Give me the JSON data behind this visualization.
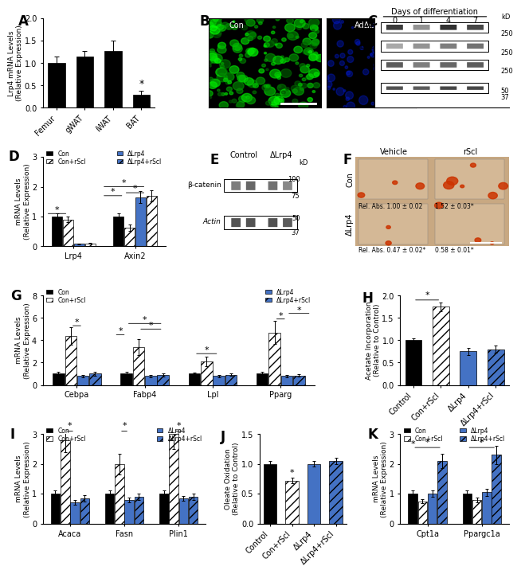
{
  "panel_A": {
    "categories": [
      "Femur",
      "gWAT",
      "iWAT",
      "BAT"
    ],
    "values": [
      1.0,
      1.15,
      1.28,
      0.3
    ],
    "errors": [
      0.15,
      0.12,
      0.22,
      0.08
    ],
    "ylabel": "Lrp4 mRNA Levels\n(Relative Expression)",
    "ylim": [
      0.0,
      2.0
    ],
    "yticks": [
      0.0,
      0.5,
      1.0,
      1.5,
      2.0
    ],
    "bar_color": "#000000",
    "star_pos": [
      3
    ],
    "label": "A"
  },
  "panel_D": {
    "groups": [
      "Lrp4",
      "Axin2"
    ],
    "conditions": [
      "Con",
      "Con+rScl",
      "ΔLrp4",
      "ΔLrp4+rScl"
    ],
    "values": {
      "Lrp4": [
        1.0,
        0.9,
        0.08,
        0.1
      ],
      "Axin2": [
        1.0,
        0.62,
        1.65,
        1.7
      ]
    },
    "errors": {
      "Lrp4": [
        0.1,
        0.1,
        0.02,
        0.02
      ],
      "Axin2": [
        0.12,
        0.1,
        0.2,
        0.18
      ]
    },
    "ylabel": "mRNA Levels\n(Relative Expression)",
    "ylim": [
      0,
      3
    ],
    "yticks": [
      0,
      1,
      2,
      3
    ],
    "colors": [
      "#000000",
      "#555555",
      "#4472C4",
      "#4472C4"
    ],
    "hatches": [
      "",
      "///",
      "",
      "///"
    ],
    "label": "D"
  },
  "panel_G": {
    "groups": [
      "Cebpa",
      "Fabp4",
      "Lpl",
      "Pparg"
    ],
    "conditions": [
      "Con",
      "Con+rScl",
      "ΔLrp4",
      "ΔLrp4+rScl"
    ],
    "values": {
      "Cebpa": [
        1.0,
        4.4,
        0.8,
        1.0
      ],
      "Fabp4": [
        1.0,
        3.4,
        0.8,
        0.9
      ],
      "Lpl": [
        1.0,
        2.1,
        0.8,
        0.9
      ],
      "Pparg": [
        1.0,
        4.7,
        0.8,
        0.85
      ]
    },
    "errors": {
      "Cebpa": [
        0.15,
        0.8,
        0.1,
        0.15
      ],
      "Fabp4": [
        0.15,
        0.7,
        0.1,
        0.12
      ],
      "Lpl": [
        0.12,
        0.45,
        0.1,
        0.1
      ],
      "Pparg": [
        0.15,
        1.0,
        0.1,
        0.1
      ]
    },
    "ylabel": "mRNA Levels\n(Relative Expression)",
    "ylim": [
      0,
      8
    ],
    "yticks": [
      0,
      2,
      4,
      6,
      8
    ],
    "colors": [
      "#000000",
      "#555555",
      "#4472C4",
      "#4472C4"
    ],
    "hatches": [
      "",
      "///",
      "",
      "///"
    ],
    "label": "G"
  },
  "panel_H": {
    "categories": [
      "Control",
      "Con+rScl",
      "ΔLrp4",
      "ΔLrp4+rScl"
    ],
    "values": [
      1.0,
      1.75,
      0.75,
      0.8
    ],
    "errors": [
      0.05,
      0.1,
      0.08,
      0.08
    ],
    "ylabel": "Acetate Incorporation\n(Relative to Control)",
    "ylim": [
      0,
      2.0
    ],
    "yticks": [
      0.0,
      0.5,
      1.0,
      1.5,
      2.0
    ],
    "colors": [
      "#000000",
      "#555555",
      "#4472C4",
      "#4472C4"
    ],
    "hatches": [
      "",
      "///",
      "",
      "///"
    ],
    "label": "H"
  },
  "panel_I": {
    "groups": [
      "Acaca",
      "Fasn",
      "Plin1"
    ],
    "conditions": [
      "Con",
      "Con+rScl",
      "ΔLrp4",
      "ΔLrp4+rScl"
    ],
    "values": {
      "Acaca": [
        1.0,
        2.8,
        0.7,
        0.85
      ],
      "Fasn": [
        1.0,
        2.0,
        0.8,
        0.9
      ],
      "Plin1": [
        1.0,
        3.0,
        0.85,
        0.9
      ]
    },
    "errors": {
      "Acaca": [
        0.12,
        0.4,
        0.08,
        0.1
      ],
      "Fasn": [
        0.12,
        0.35,
        0.08,
        0.1
      ],
      "Plin1": [
        0.12,
        0.5,
        0.08,
        0.1
      ]
    },
    "ylabel": "mRNA Levels\n(Relative Expression)",
    "ylim": [
      0,
      3
    ],
    "yticks": [
      0,
      1,
      2,
      3
    ],
    "colors": [
      "#000000",
      "#555555",
      "#4472C4",
      "#4472C4"
    ],
    "hatches": [
      "",
      "///",
      "",
      "///"
    ],
    "label": "I"
  },
  "panel_J": {
    "categories": [
      "Control",
      "Con+rScl",
      "ΔLrp4",
      "ΔLrp4+rScl"
    ],
    "values": [
      1.0,
      0.72,
      1.0,
      1.05
    ],
    "errors": [
      0.05,
      0.05,
      0.05,
      0.05
    ],
    "ylabel": "Oleate Oxidation\n(Relative to Control)",
    "ylim": [
      0,
      1.5
    ],
    "yticks": [
      0.0,
      0.5,
      1.0,
      1.5
    ],
    "colors": [
      "#000000",
      "#555555",
      "#4472C4",
      "#4472C4"
    ],
    "hatches": [
      "",
      "///",
      "",
      "///"
    ],
    "label": "J"
  },
  "panel_K": {
    "groups": [
      "Cpt1a",
      "Ppargc1a"
    ],
    "conditions": [
      "Con",
      "Con+rScl",
      "ΔLrp4",
      "ΔLrp4+rScl"
    ],
    "values": {
      "Cpt1a": [
        1.0,
        0.75,
        1.0,
        2.1
      ],
      "Ppargc1a": [
        1.0,
        0.8,
        1.05,
        2.3
      ]
    },
    "errors": {
      "Cpt1a": [
        0.1,
        0.08,
        0.1,
        0.25
      ],
      "Ppargc1a": [
        0.1,
        0.08,
        0.12,
        0.3
      ]
    },
    "ylabel": "mRNA Levels\n(Relative Expression)",
    "ylim": [
      0,
      3
    ],
    "yticks": [
      0,
      1,
      2,
      3
    ],
    "colors": [
      "#000000",
      "#555555",
      "#4472C4",
      "#4472C4"
    ],
    "hatches": [
      "",
      "///",
      "",
      "///"
    ],
    "label": "K"
  },
  "legend": {
    "Con": {
      "color": "#000000",
      "hatch": ""
    },
    "Con+rScl": {
      "color": "#555555",
      "hatch": "///"
    },
    "DLrp4": {
      "color": "#4472C4",
      "hatch": ""
    },
    "DLrp4+rScl": {
      "color": "#4472C4",
      "hatch": "///"
    }
  },
  "bg_color": "#ffffff",
  "font_size": 7
}
